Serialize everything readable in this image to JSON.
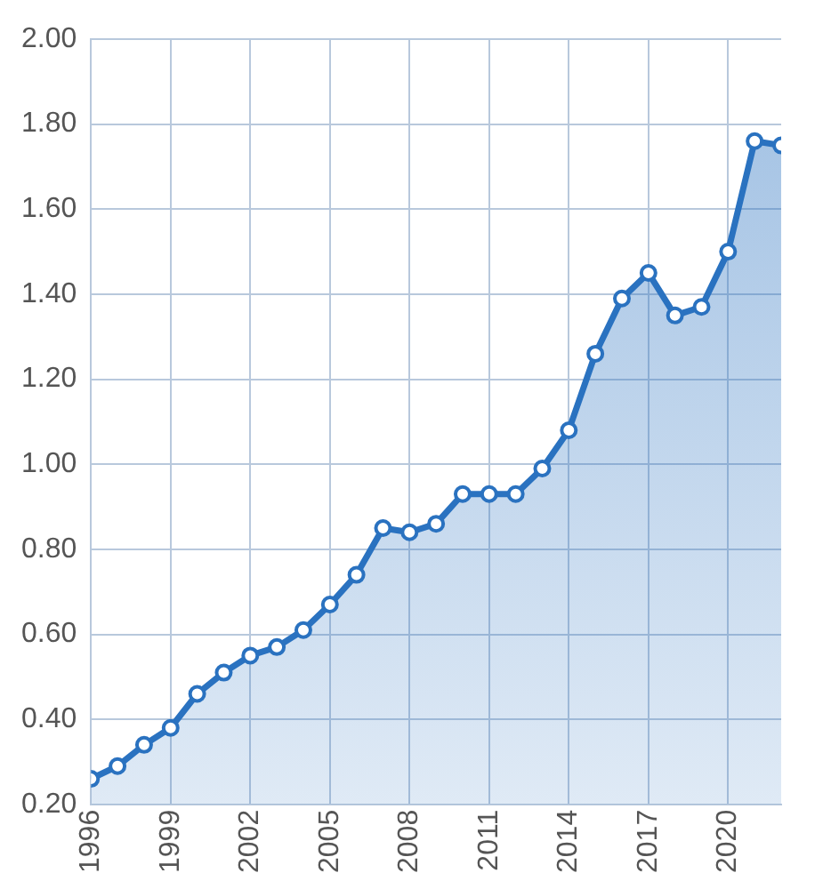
{
  "chart_data": {
    "type": "area",
    "x": [
      1996,
      1997,
      1998,
      1999,
      2000,
      2001,
      2002,
      2003,
      2004,
      2005,
      2006,
      2007,
      2008,
      2009,
      2010,
      2011,
      2012,
      2013,
      2014,
      2015,
      2016,
      2017,
      2018,
      2019,
      2020,
      2021,
      2022
    ],
    "series": [
      {
        "color": "#2a72c0",
        "values": [
          0.26,
          0.29,
          0.34,
          0.38,
          0.46,
          0.51,
          0.55,
          0.57,
          0.61,
          0.67,
          0.74,
          0.85,
          0.84,
          0.86,
          0.93,
          0.93,
          0.93,
          0.99,
          1.08,
          1.26,
          1.39,
          1.45,
          1.35,
          1.37,
          1.5,
          1.76,
          1.75
        ]
      }
    ],
    "xlim": [
      1996,
      2022
    ],
    "xticks": [
      1996,
      1999,
      2002,
      2005,
      2008,
      2011,
      2014,
      2017,
      2020
    ],
    "ylim": [
      0.2,
      2.0
    ],
    "yticks": [
      {
        "value": 0.2,
        "label": "0.20"
      },
      {
        "value": 0.4,
        "label": "0.40"
      },
      {
        "value": 0.6,
        "label": "0.60"
      },
      {
        "value": 0.8,
        "label": "0.80"
      },
      {
        "value": 1.0,
        "label": "1.00"
      },
      {
        "value": 1.2,
        "label": "1.20"
      },
      {
        "value": 1.4,
        "label": "1.40"
      },
      {
        "value": 1.6,
        "label": "1.60"
      },
      {
        "value": 1.8,
        "label": "1.80"
      },
      {
        "value": 2.0,
        "label": "2.00"
      }
    ],
    "grid": true,
    "marker": "circle",
    "legend": false
  }
}
